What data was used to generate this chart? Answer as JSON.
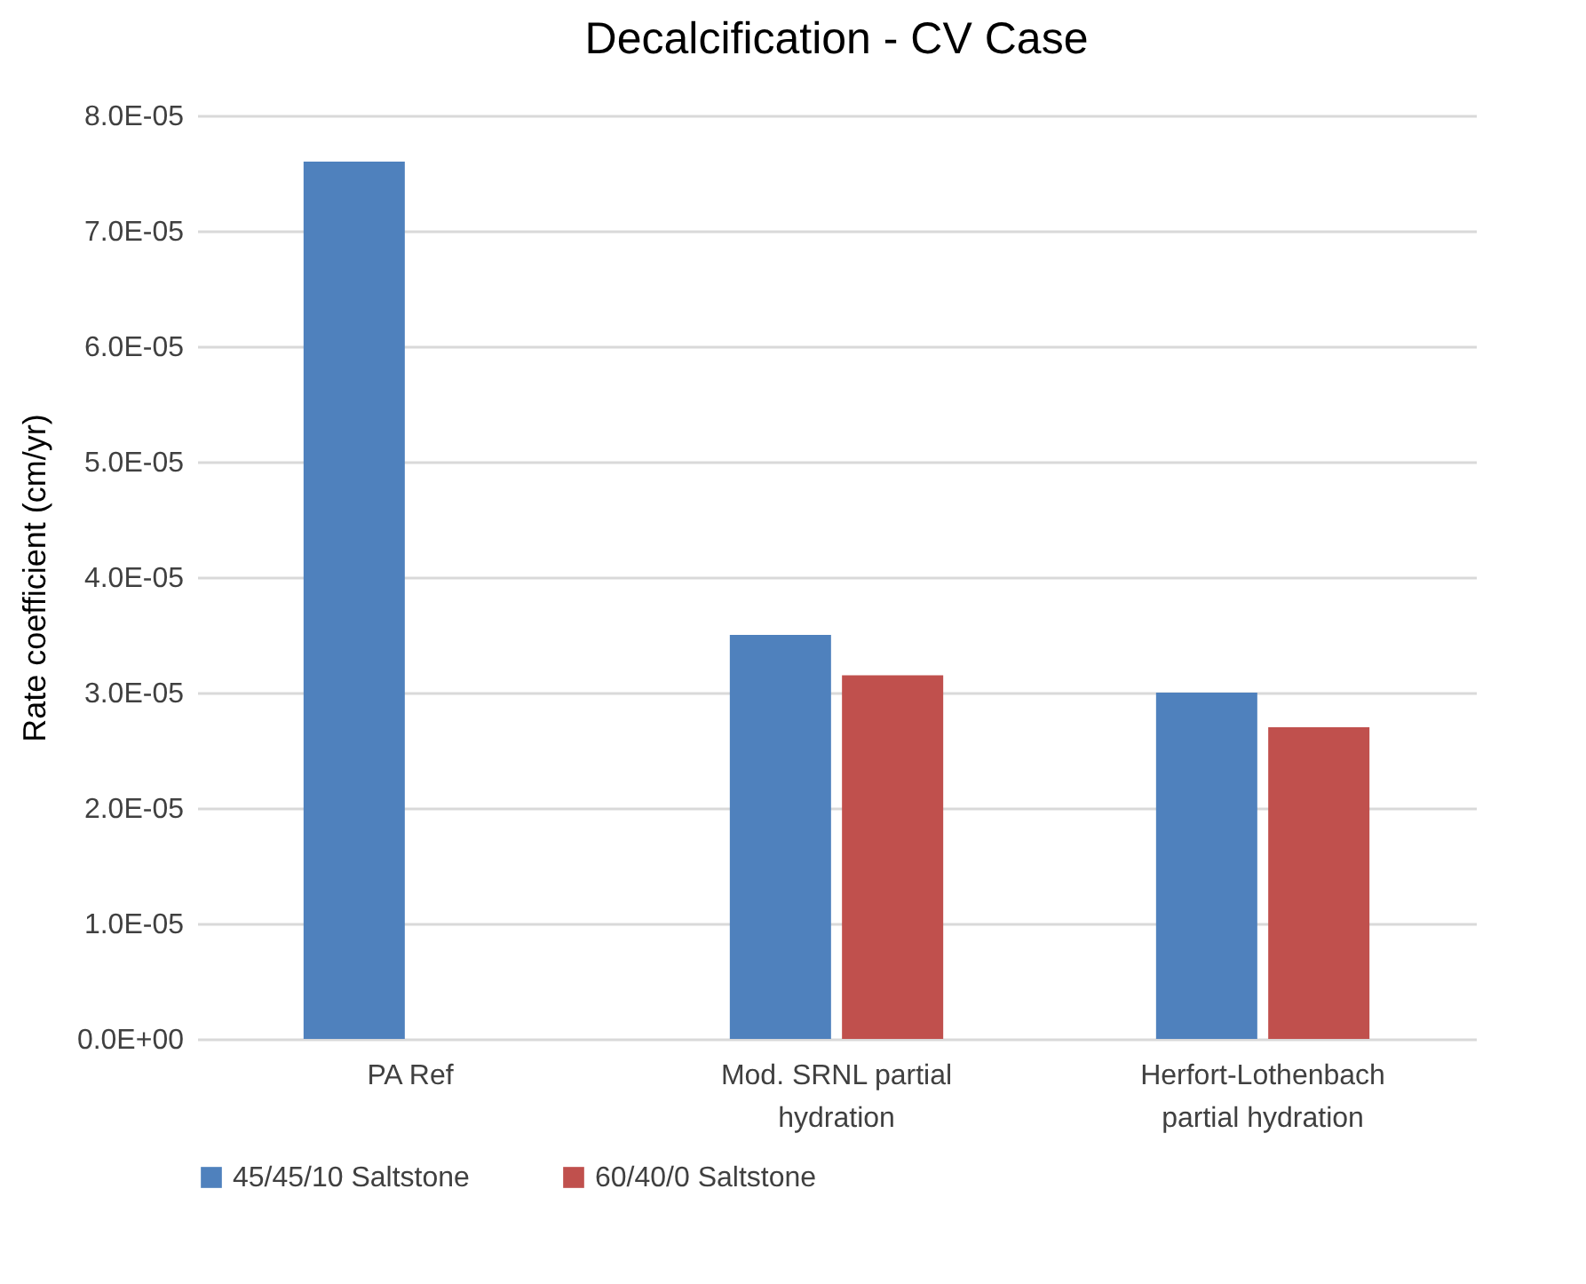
{
  "chart_data": {
    "type": "bar",
    "title": "Decalcification - CV Case",
    "ylabel": "Rate coefficient (cm/yr)",
    "categories": [
      "PA Ref",
      "Mod. SRNL partial hydration",
      "Herfort-Lothenbach partial hydration"
    ],
    "series": [
      {
        "name": "45/45/10 Saltstone",
        "color": "#4f81bd",
        "values": [
          7.6e-05,
          3.5e-05,
          3e-05
        ]
      },
      {
        "name": "60/40/0 Saltstone",
        "color": "#c0504d",
        "values": [
          null,
          3.15e-05,
          2.7e-05
        ]
      }
    ],
    "ylim": [
      0,
      8e-05
    ],
    "yticks": [
      {
        "value": 0,
        "label": "0.0E+00"
      },
      {
        "value": 1e-05,
        "label": "1.0E-05"
      },
      {
        "value": 2e-05,
        "label": "2.0E-05"
      },
      {
        "value": 3e-05,
        "label": "3.0E-05"
      },
      {
        "value": 4e-05,
        "label": "4.0E-05"
      },
      {
        "value": 5e-05,
        "label": "5.0E-05"
      },
      {
        "value": 6e-05,
        "label": "6.0E-05"
      },
      {
        "value": 7e-05,
        "label": "7.0E-05"
      },
      {
        "value": 8e-05,
        "label": "8.0E-05"
      }
    ],
    "grid": "y",
    "legend": "bottom"
  }
}
